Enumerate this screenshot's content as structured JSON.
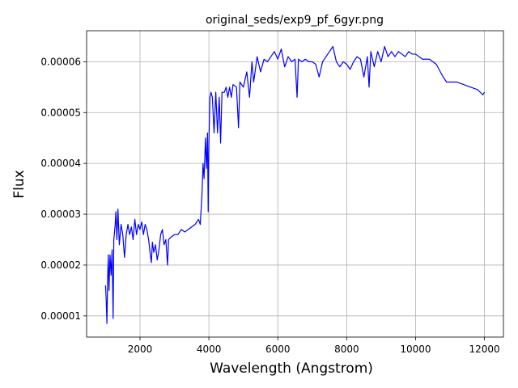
{
  "chart_data": {
    "type": "line",
    "title": "original_seds/exp9_pf_6gyr.png",
    "xlabel": "Wavelength (Angstrom)",
    "ylabel": "Flux",
    "grid": true,
    "xlim": [
      450,
      12550
    ],
    "ylim": [
      5.84e-06,
      6.61e-05
    ],
    "xticks": [
      2000,
      4000,
      6000,
      8000,
      10000,
      12000
    ],
    "yticks": [
      {
        "value": 1e-05,
        "label": "0.00001"
      },
      {
        "value": 2e-05,
        "label": "0.00002"
      },
      {
        "value": 3e-05,
        "label": "0.00003"
      },
      {
        "value": 4e-05,
        "label": "0.00004"
      },
      {
        "value": 5e-05,
        "label": "0.00005"
      },
      {
        "value": 6e-05,
        "label": "0.00006"
      }
    ],
    "x": [
      1000,
      1020,
      1040,
      1060,
      1080,
      1100,
      1130,
      1160,
      1190,
      1220,
      1240,
      1280,
      1300,
      1330,
      1360,
      1400,
      1450,
      1500,
      1550,
      1600,
      1650,
      1700,
      1750,
      1800,
      1850,
      1900,
      1950,
      2000,
      2050,
      2100,
      2150,
      2200,
      2250,
      2300,
      2330,
      2360,
      2400,
      2450,
      2500,
      2550,
      2600,
      2650,
      2700,
      2750,
      2800,
      2830,
      2900,
      3000,
      3100,
      3200,
      3300,
      3400,
      3500,
      3600,
      3700,
      3750,
      3800,
      3830,
      3860,
      3900,
      3930,
      3960,
      3980,
      4000,
      4030,
      4060,
      4100,
      4150,
      4200,
      4250,
      4300,
      4340,
      4380,
      4450,
      4500,
      4550,
      4600,
      4650,
      4700,
      4800,
      4860,
      4900,
      5000,
      5100,
      5180,
      5250,
      5300,
      5400,
      5500,
      5600,
      5700,
      5800,
      5900,
      6000,
      6100,
      6200,
      6300,
      6400,
      6500,
      6560,
      6600,
      6700,
      6800,
      6900,
      7000,
      7100,
      7200,
      7300,
      7400,
      7500,
      7600,
      7700,
      7800,
      7900,
      8000,
      8100,
      8200,
      8300,
      8400,
      8500,
      8600,
      8650,
      8700,
      8800,
      8900,
      9000,
      9100,
      9200,
      9300,
      9400,
      9500,
      9600,
      9700,
      9800,
      9900,
      10000,
      10200,
      10400,
      10600,
      10800,
      10900,
      11000,
      11200,
      11400,
      11600,
      11800,
      11950,
      12000
    ],
    "series": [
      {
        "name": "Flux",
        "color": "#0000ff",
        "values": [
          1.6e-05,
          1.3e-05,
          8.5e-06,
          1.7e-05,
          2.2e-05,
          1.5e-05,
          2.2e-05,
          1.8e-05,
          2.3e-05,
          9.5e-06,
          2.5e-05,
          2.8e-05,
          3.05e-05,
          2.5e-05,
          3.1e-05,
          2.4e-05,
          2.8e-05,
          2.6e-05,
          2.15e-05,
          2.6e-05,
          2.8e-05,
          2.6e-05,
          2.75e-05,
          2.5e-05,
          2.9e-05,
          2.6e-05,
          2.8e-05,
          2.7e-05,
          2.85e-05,
          2.6e-05,
          2.8e-05,
          2.7e-05,
          2.5e-05,
          2.2e-05,
          2.05e-05,
          2.45e-05,
          2.25e-05,
          2.4e-05,
          2.1e-05,
          2.3e-05,
          2.6e-05,
          2.7e-05,
          2.4e-05,
          2.5e-05,
          2e-05,
          2.5e-05,
          2.55e-05,
          2.6e-05,
          2.6e-05,
          2.7e-05,
          2.65e-05,
          2.7e-05,
          2.75e-05,
          2.8e-05,
          2.9e-05,
          2.8e-05,
          3.4e-05,
          4e-05,
          3.7e-05,
          4.5e-05,
          3.9e-05,
          4.6e-05,
          3.05e-05,
          4.4e-05,
          5.3e-05,
          5.4e-05,
          5.3e-05,
          4.6e-05,
          5.4e-05,
          4.6e-05,
          5.3e-05,
          4.4e-05,
          5.4e-05,
          5.4e-05,
          5.5e-05,
          5.3e-05,
          5.5e-05,
          5.3e-05,
          5.55e-05,
          5.5e-05,
          4.7e-05,
          5.6e-05,
          5.5e-05,
          5.8e-05,
          5.3e-05,
          6e-05,
          5.6e-05,
          6.1e-05,
          5.8e-05,
          6.05e-05,
          6e-05,
          6.1e-05,
          6.2e-05,
          6.05e-05,
          6.25e-05,
          5.9e-05,
          6.1e-05,
          6e-05,
          6.05e-05,
          5.3e-05,
          6.05e-05,
          6e-05,
          6.05e-05,
          6e-05,
          6e-05,
          5.95e-05,
          5.7e-05,
          6e-05,
          6.1e-05,
          6.2e-05,
          6.3e-05,
          6e-05,
          5.9e-05,
          6e-05,
          5.95e-05,
          5.85e-05,
          6e-05,
          6.1e-05,
          6.05e-05,
          5.7e-05,
          6.1e-05,
          5.5e-05,
          6.2e-05,
          5.9e-05,
          6.2e-05,
          6e-05,
          6.3e-05,
          6.1e-05,
          6.2e-05,
          6.1e-05,
          6.2e-05,
          6.15e-05,
          6.1e-05,
          6.2e-05,
          6.15e-05,
          6.15e-05,
          6.05e-05,
          6.05e-05,
          5.95e-05,
          5.7e-05,
          5.6e-05,
          5.6e-05,
          5.6e-05,
          5.55e-05,
          5.5e-05,
          5.45e-05,
          5.35e-05,
          5.4e-05
        ]
      }
    ]
  }
}
